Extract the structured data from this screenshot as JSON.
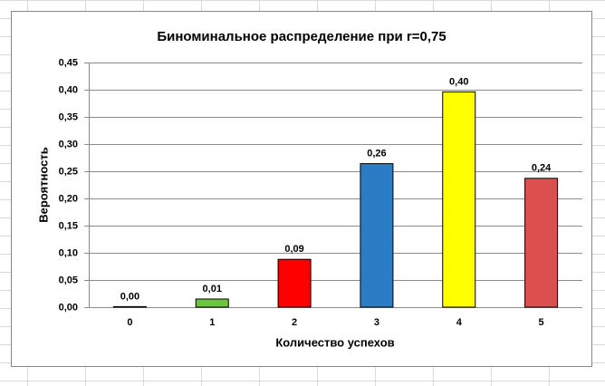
{
  "chart_data": {
    "type": "bar",
    "title": "Биноминальное распределение при r=0,75",
    "x_label": "Количество успехов",
    "y_label": "Вероятность",
    "categories": [
      "0",
      "1",
      "2",
      "3",
      "4",
      "5"
    ],
    "values": [
      0.001,
      0.015,
      0.088,
      0.264,
      0.396,
      0.237
    ],
    "value_labels": [
      "0,00",
      "0,01",
      "0,09",
      "0,26",
      "0,40",
      "0,24"
    ],
    "colors": [
      "#7f7f7f",
      "#6cc43f",
      "#ff0000",
      "#2a7dc4",
      "#ffff00",
      "#dc4f4f"
    ],
    "ylim": [
      0,
      0.45
    ],
    "yticks": [
      {
        "value": 0,
        "label": "0,00"
      },
      {
        "value": 0.05,
        "label": "0,05"
      },
      {
        "value": 0.1,
        "label": "0,10"
      },
      {
        "value": 0.15,
        "label": "0,15"
      },
      {
        "value": 0.2,
        "label": "0,20"
      },
      {
        "value": 0.25,
        "label": "0,25"
      },
      {
        "value": 0.3,
        "label": "0,30"
      },
      {
        "value": 0.35,
        "label": "0,35"
      },
      {
        "value": 0.4,
        "label": "0,40"
      },
      {
        "value": 0.45,
        "label": "0,45"
      }
    ],
    "grid": true
  }
}
